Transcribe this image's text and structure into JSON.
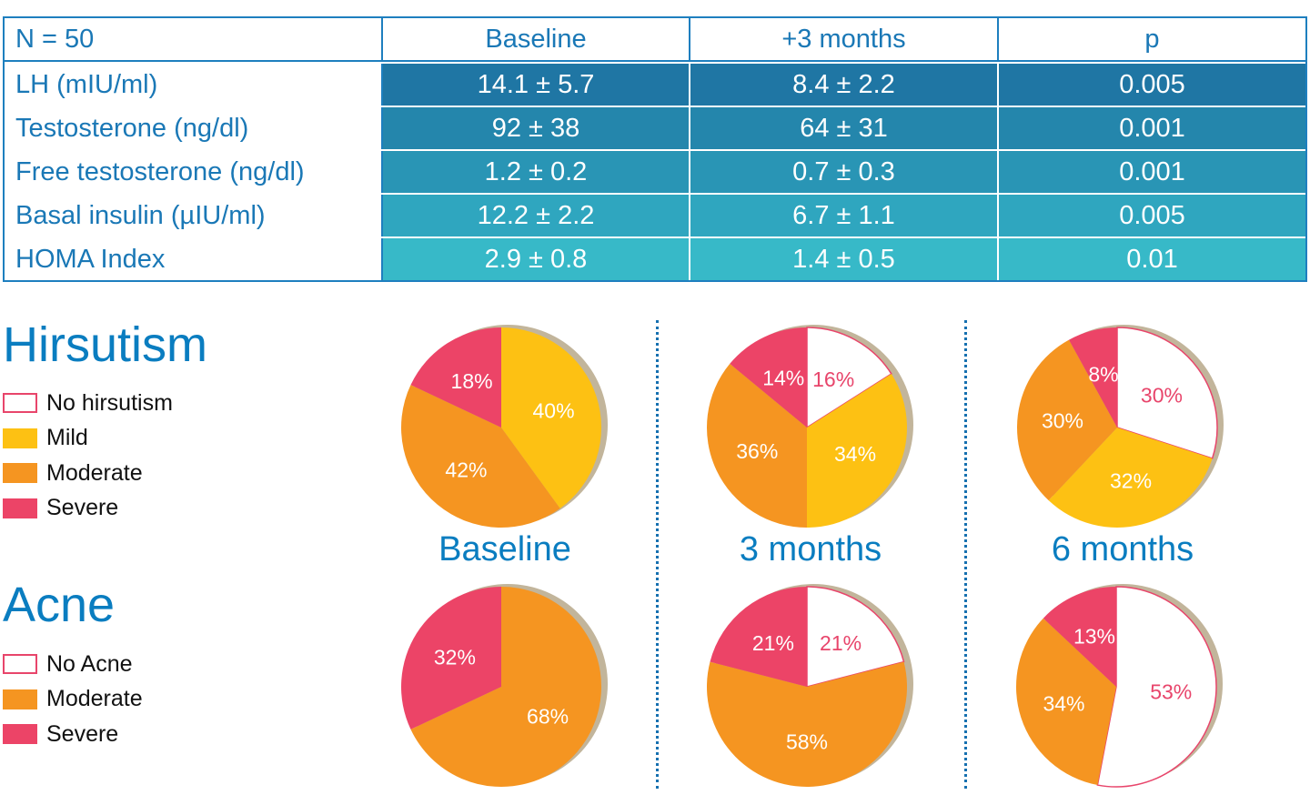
{
  "table": {
    "headers": [
      "N = 50",
      "Baseline",
      "+3 months",
      "p"
    ],
    "rows": [
      {
        "label": "LH (mIU/ml)",
        "baseline": "14.1 ± 5.7",
        "three_months": "8.4 ± 2.2",
        "p": "0.005"
      },
      {
        "label": "Testosterone (ng/dl)",
        "baseline": "92 ± 38",
        "three_months": "64 ± 31",
        "p": "0.001"
      },
      {
        "label": "Free testosterone (ng/dl)",
        "baseline": "1.2 ± 0.2",
        "three_months": "0.7 ± 0.3",
        "p": "0.001"
      },
      {
        "label": "Basal insulin (µIU/ml)",
        "baseline": "12.2 ± 2.2",
        "three_months": "6.7 ± 1.1",
        "p": "0.005"
      },
      {
        "label": "HOMA Index",
        "baseline": "2.9 ± 0.8",
        "three_months": "1.4 ± 0.5",
        "p": "0.01"
      }
    ],
    "row_colors": [
      "#1f76a4",
      "#2486ac",
      "#2995b5",
      "#2fa6bf",
      "#37b9c8"
    ]
  },
  "colors": {
    "none_fill": "#ffffff",
    "none_stroke": "#e8456b",
    "mild": "#fdc113",
    "moderate": "#f59521",
    "severe": "#ec4467",
    "shadow": "#c2b59b",
    "title": "#0a7dc0"
  },
  "period_labels": [
    "Baseline",
    "3 months",
    "6 months"
  ],
  "chart_data": [
    {
      "type": "pie",
      "title": "Hirsutism",
      "legend": [
        "No hirsutism",
        "Mild",
        "Moderate",
        "Severe"
      ],
      "legend_placement": "left",
      "periods": [
        {
          "name": "Baseline",
          "slices": [
            {
              "category": "Mild",
              "value": 40
            },
            {
              "category": "Moderate",
              "value": 42
            },
            {
              "category": "Severe",
              "value": 18
            }
          ]
        },
        {
          "name": "3 months",
          "slices": [
            {
              "category": "No hirsutism",
              "value": 16
            },
            {
              "category": "Mild",
              "value": 34
            },
            {
              "category": "Moderate",
              "value": 36
            },
            {
              "category": "Severe",
              "value": 14
            }
          ]
        },
        {
          "name": "6 months",
          "slices": [
            {
              "category": "No hirsutism",
              "value": 30
            },
            {
              "category": "Mild",
              "value": 32
            },
            {
              "category": "Moderate",
              "value": 30
            },
            {
              "category": "Severe",
              "value": 8
            }
          ]
        }
      ]
    },
    {
      "type": "pie",
      "title": "Acne",
      "legend": [
        "No Acne",
        "Moderate",
        "Severe"
      ],
      "legend_placement": "left",
      "periods": [
        {
          "name": "Baseline",
          "slices": [
            {
              "category": "Moderate",
              "value": 68
            },
            {
              "category": "Severe",
              "value": 32
            }
          ]
        },
        {
          "name": "3 months",
          "slices": [
            {
              "category": "No Acne",
              "value": 21
            },
            {
              "category": "Moderate",
              "value": 58
            },
            {
              "category": "Severe",
              "value": 21
            }
          ]
        },
        {
          "name": "6 months",
          "slices": [
            {
              "category": "No Acne",
              "value": 53
            },
            {
              "category": "Moderate",
              "value": 34
            },
            {
              "category": "Severe",
              "value": 13
            }
          ]
        }
      ]
    }
  ]
}
